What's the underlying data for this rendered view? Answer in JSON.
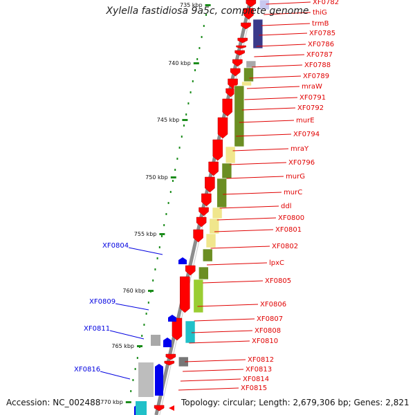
{
  "title": "Xylella fastidiosa 9a5c, complete genome",
  "footer": {
    "accession": "Accession: NC_002488",
    "topology": "Topology: circular; Length: 2,679,306 bp; Genes: 2,821"
  },
  "colors": {
    "forward_gene": "#ff0000",
    "reverse_gene": "#0000ee",
    "right_label": "#e00000",
    "left_label": "#0000e0",
    "tick": "#1b8c1b",
    "backbone": "#8c8c8c",
    "olive": "#6b8e23",
    "khaki": "#f0e68c",
    "lime": "#9acd32",
    "cyan": "#20c0c8",
    "grey": "#a8a8a8",
    "navy": "#3a3a8a",
    "lavender": "#c8c8f0"
  },
  "scale": {
    "ticks": [
      {
        "label": "735 kbp"
      },
      {
        "label": "740 kbp"
      },
      {
        "label": "745 kbp"
      },
      {
        "label": "750 kbp"
      },
      {
        "label": "755 kbp"
      },
      {
        "label": "760 kbp"
      },
      {
        "label": "765 kbp"
      },
      {
        "label": "770 kbp"
      }
    ]
  },
  "labels_right": [
    "XF0782",
    "thiG",
    "trmB",
    "XF0785",
    "XF0786",
    "XF0787",
    "XF0788",
    "XF0789",
    "mraW",
    "XF0791",
    "XF0792",
    "murE",
    "XF0794",
    "mraY",
    "XF0796",
    "murG",
    "murC",
    "ddl",
    "XF0800",
    "XF0801",
    "XF0802",
    "lpxC",
    "XF0805",
    "XF0806",
    "XF0807",
    "XF0808",
    "XF0810",
    "XF0812",
    "XF0813",
    "XF0814",
    "XF0815"
  ],
  "labels_left": [
    "XF0804",
    "XF0809",
    "XF0811",
    "XF0816"
  ]
}
